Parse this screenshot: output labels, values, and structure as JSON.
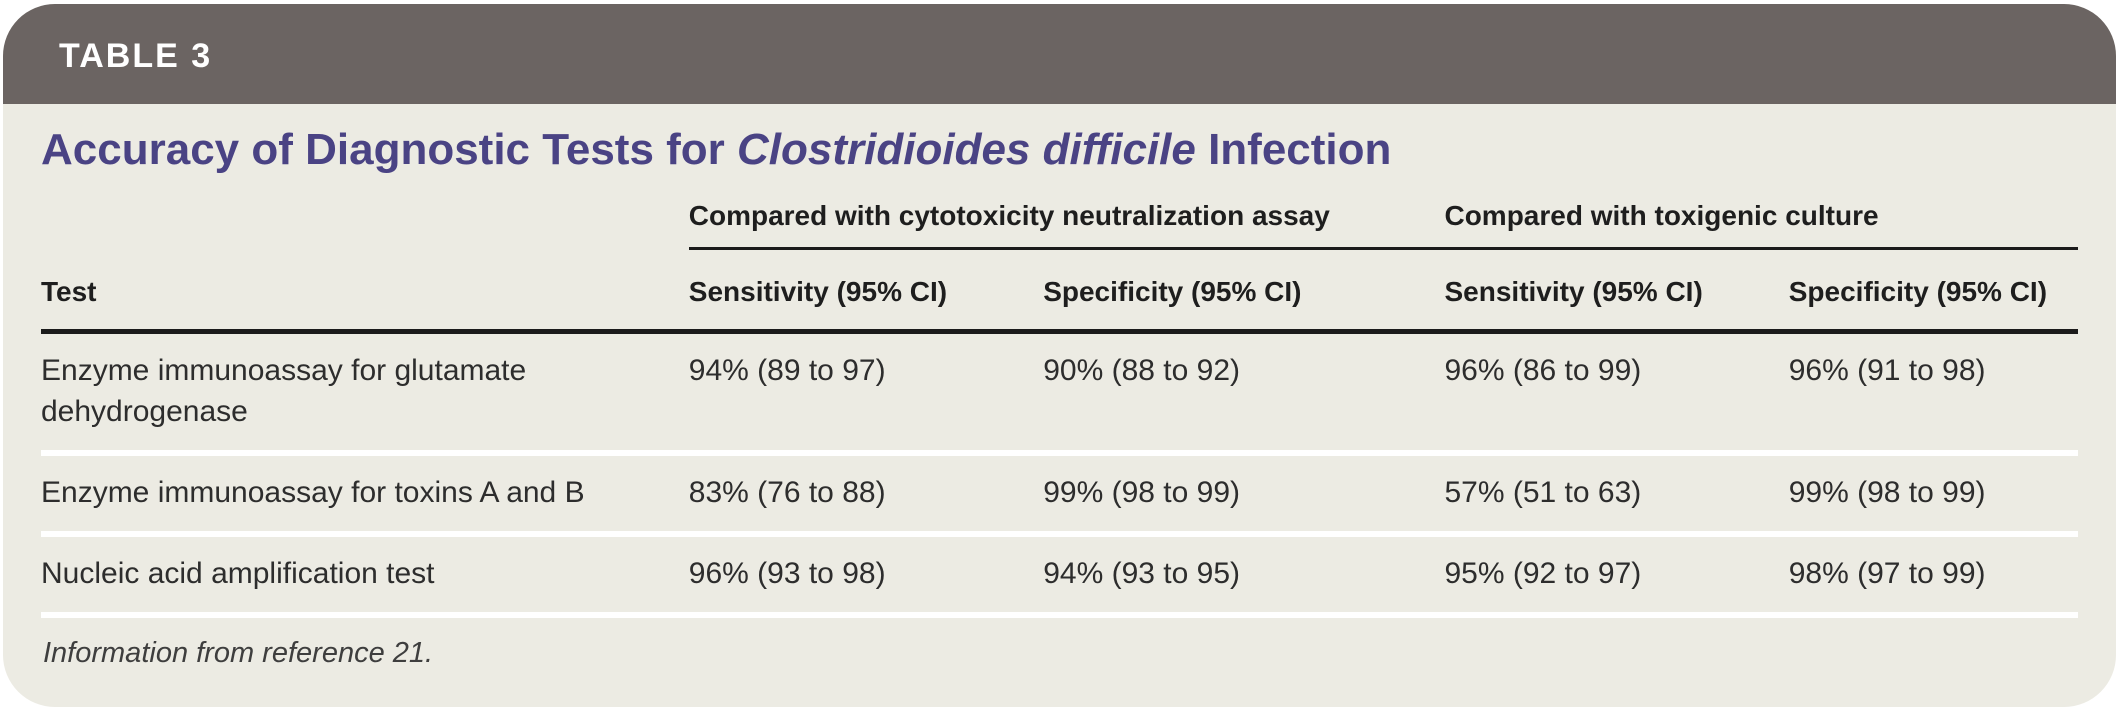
{
  "header": {
    "tag": "TABLE 3"
  },
  "title": {
    "prefix": "Accuracy of Diagnostic Tests for ",
    "italic": "Clostridioides difficile",
    "suffix": " Infection"
  },
  "table": {
    "group_headers": [
      "Compared with cytotoxicity neutralization assay",
      "Compared with toxigenic culture"
    ],
    "columns": [
      "Test",
      "Sensitivity (95% CI)",
      "Specificity (95% CI)",
      "Sensitivity (95% CI)",
      "Specificity (95% CI)"
    ],
    "rows": [
      {
        "test": "Enzyme immunoassay for glutamate dehydrogenase",
        "values": [
          "94% (89 to 97)",
          "90% (88 to 92)",
          "96% (86 to 99)",
          "96% (91 to 98)"
        ]
      },
      {
        "test": "Enzyme immunoassay for toxins A and B",
        "values": [
          "83% (76 to 88)",
          "99% (98 to 99)",
          "57% (51 to 63)",
          "99% (98 to 99)"
        ]
      },
      {
        "test": "Nucleic acid amplification test",
        "values": [
          "96% (93 to 98)",
          "94% (93 to 95)",
          "95% (92 to 97)",
          "98% (97 to 99)"
        ]
      }
    ],
    "footnote": "Information from reference 21."
  },
  "colors": {
    "header_bar": "#6B6462",
    "body_background": "#ECEBE3",
    "title_text": "#4A4384",
    "rule_dark": "#1B1B1B",
    "row_separator": "#FFFFFF"
  }
}
